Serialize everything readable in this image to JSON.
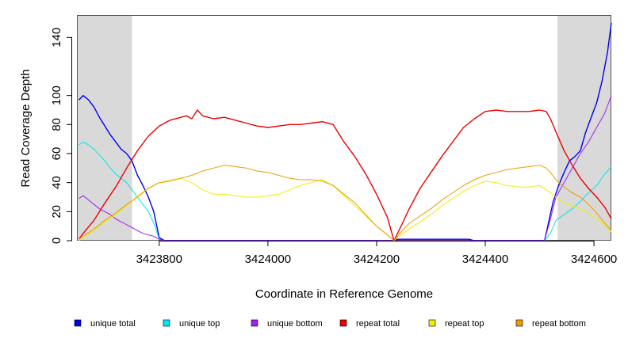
{
  "chart_data": {
    "type": "line",
    "xlabel": "Coordinate in Reference Genome",
    "ylabel": "Read Coverage Depth",
    "xlim": [
      3423650,
      3424632
    ],
    "ylim": [
      0,
      150
    ],
    "x_ticks": [
      3423800,
      3424000,
      3424200,
      3424400,
      3424600
    ],
    "y_ticks": [
      0,
      20,
      40,
      60,
      80,
      100,
      140
    ],
    "grid": false,
    "legend_position": "bottom",
    "shaded_regions": [
      [
        3423650,
        3423750
      ],
      [
        3424533,
        3424632
      ]
    ],
    "shade_color": "#d9d9d9",
    "series": [
      {
        "name": "unique total",
        "color": "#0000ee",
        "x": [
          3423652,
          3423660,
          3423670,
          3423680,
          3423690,
          3423700,
          3423710,
          3423720,
          3423730,
          3423740,
          3423750,
          3423760,
          3423770,
          3423780,
          3423790,
          3423800,
          3423810,
          3424230,
          3424240,
          3424370,
          3424380,
          3424509,
          3424515,
          3424525,
          3424535,
          3424545,
          3424555,
          3424565,
          3424575,
          3424585,
          3424595,
          3424605,
          3424615,
          3424625,
          3424632
        ],
        "y": [
          97,
          100,
          97,
          92,
          85,
          79,
          73,
          68,
          63,
          60,
          55,
          45,
          38,
          30,
          20,
          2,
          0,
          0,
          1,
          1,
          0,
          0,
          10,
          27,
          38,
          47,
          55,
          58,
          62,
          75,
          85,
          95,
          110,
          130,
          150
        ]
      },
      {
        "name": "unique top",
        "color": "#00e5ee",
        "x": [
          3423652,
          3423660,
          3423670,
          3423680,
          3423690,
          3423700,
          3423710,
          3423720,
          3423730,
          3423740,
          3423750,
          3423760,
          3423770,
          3423780,
          3423790,
          3423800,
          3423810,
          3424509,
          3424520,
          3424530,
          3424545,
          3424560,
          3424575,
          3424590,
          3424605,
          3424620,
          3424632
        ],
        "y": [
          66,
          68,
          66,
          63,
          59,
          55,
          50,
          46,
          43,
          40,
          35,
          30,
          25,
          20,
          12,
          1,
          0,
          0,
          5,
          14,
          18,
          22,
          27,
          33,
          38,
          46,
          51
        ]
      },
      {
        "name": "unique bottom",
        "color": "#a020f0",
        "x": [
          3423652,
          3423660,
          3423670,
          3423680,
          3423690,
          3423700,
          3423710,
          3423720,
          3423730,
          3423740,
          3423750,
          3423760,
          3423770,
          3423780,
          3423790,
          3423800,
          3423810,
          3424509,
          3424520,
          3424530,
          3424545,
          3424560,
          3424575,
          3424590,
          3424605,
          3424620,
          3424632
        ],
        "y": [
          29,
          31,
          28,
          25,
          22,
          20,
          18,
          15,
          13,
          11,
          9,
          7,
          5,
          4,
          3,
          1,
          0,
          0,
          15,
          30,
          40,
          50,
          60,
          68,
          78,
          88,
          100
        ]
      },
      {
        "name": "repeat total",
        "color": "#ee0000",
        "x": [
          3423652,
          3423660,
          3423680,
          3423700,
          3423720,
          3423740,
          3423760,
          3423780,
          3423800,
          3423820,
          3423840,
          3423850,
          3423860,
          3423870,
          3423880,
          3423900,
          3423920,
          3423940,
          3423960,
          3423980,
          3424000,
          3424020,
          3424040,
          3424060,
          3424080,
          3424100,
          3424120,
          3424140,
          3424160,
          3424180,
          3424200,
          3424220,
          3424232,
          3424245,
          3424260,
          3424280,
          3424300,
          3424320,
          3424340,
          3424360,
          3424380,
          3424400,
          3424420,
          3424440,
          3424460,
          3424480,
          3424500,
          3424512,
          3424520,
          3424530,
          3424545,
          3424560,
          3424575,
          3424590,
          3424605,
          3424620,
          3424632
        ],
        "y": [
          1,
          5,
          14,
          26,
          37,
          50,
          62,
          72,
          79,
          83,
          85,
          86,
          84,
          90,
          86,
          84,
          85,
          83,
          81,
          79,
          78,
          79,
          80,
          80,
          81,
          82,
          80,
          68,
          58,
          46,
          32,
          16,
          0,
          10,
          22,
          36,
          47,
          58,
          68,
          78,
          84,
          89,
          90,
          89,
          89,
          89,
          90,
          89,
          84,
          75,
          62,
          52,
          43,
          36,
          30,
          23,
          15
        ]
      },
      {
        "name": "repeat top",
        "color": "#eeee00",
        "x": [
          3423652,
          3423660,
          3423680,
          3423700,
          3423720,
          3423740,
          3423760,
          3423780,
          3423800,
          3423820,
          3423840,
          3423860,
          3423880,
          3423900,
          3423920,
          3423940,
          3423960,
          3423980,
          3424000,
          3424020,
          3424040,
          3424060,
          3424080,
          3424100,
          3424120,
          3424140,
          3424160,
          3424180,
          3424200,
          3424220,
          3424232,
          3424245,
          3424260,
          3424280,
          3424300,
          3424320,
          3424340,
          3424360,
          3424380,
          3424400,
          3424420,
          3424440,
          3424460,
          3424480,
          3424500,
          3424512,
          3424520,
          3424530,
          3424545,
          3424560,
          3424575,
          3424590,
          3424605,
          3424620,
          3424632
        ],
        "y": [
          0,
          2,
          7,
          13,
          18,
          24,
          31,
          36,
          40,
          42,
          43,
          40,
          35,
          32,
          32,
          31,
          30,
          30,
          31,
          32,
          35,
          38,
          40,
          42,
          38,
          31,
          24,
          17,
          10,
          4,
          0,
          4,
          8,
          13,
          18,
          24,
          29,
          34,
          38,
          41,
          40,
          38,
          37,
          37,
          38,
          35,
          33,
          30,
          26,
          24,
          22,
          19,
          15,
          11,
          6
        ]
      },
      {
        "name": "repeat bottom",
        "color": "#ee9a00",
        "x": [
          3423652,
          3423660,
          3423680,
          3423700,
          3423720,
          3423740,
          3423760,
          3423780,
          3423800,
          3423820,
          3423840,
          3423860,
          3423880,
          3423900,
          3423920,
          3423940,
          3423960,
          3423980,
          3424000,
          3424020,
          3424040,
          3424060,
          3424080,
          3424100,
          3424120,
          3424140,
          3424160,
          3424180,
          3424200,
          3424220,
          3424232,
          3424245,
          3424260,
          3424280,
          3424300,
          3424320,
          3424340,
          3424360,
          3424380,
          3424400,
          3424420,
          3424440,
          3424460,
          3424480,
          3424500,
          3424512,
          3424520,
          3424530,
          3424545,
          3424560,
          3424575,
          3424590,
          3424605,
          3424620,
          3424632
        ],
        "y": [
          1,
          3,
          8,
          14,
          19,
          25,
          30,
          36,
          40,
          41,
          43,
          45,
          48,
          50,
          52,
          51,
          50,
          48,
          47,
          45,
          43,
          42,
          42,
          41,
          38,
          32,
          26,
          18,
          10,
          4,
          0,
          6,
          12,
          17,
          22,
          28,
          33,
          38,
          42,
          45,
          47,
          49,
          50,
          51,
          52,
          50,
          47,
          42,
          37,
          33,
          30,
          25,
          19,
          12,
          7
        ]
      }
    ]
  }
}
